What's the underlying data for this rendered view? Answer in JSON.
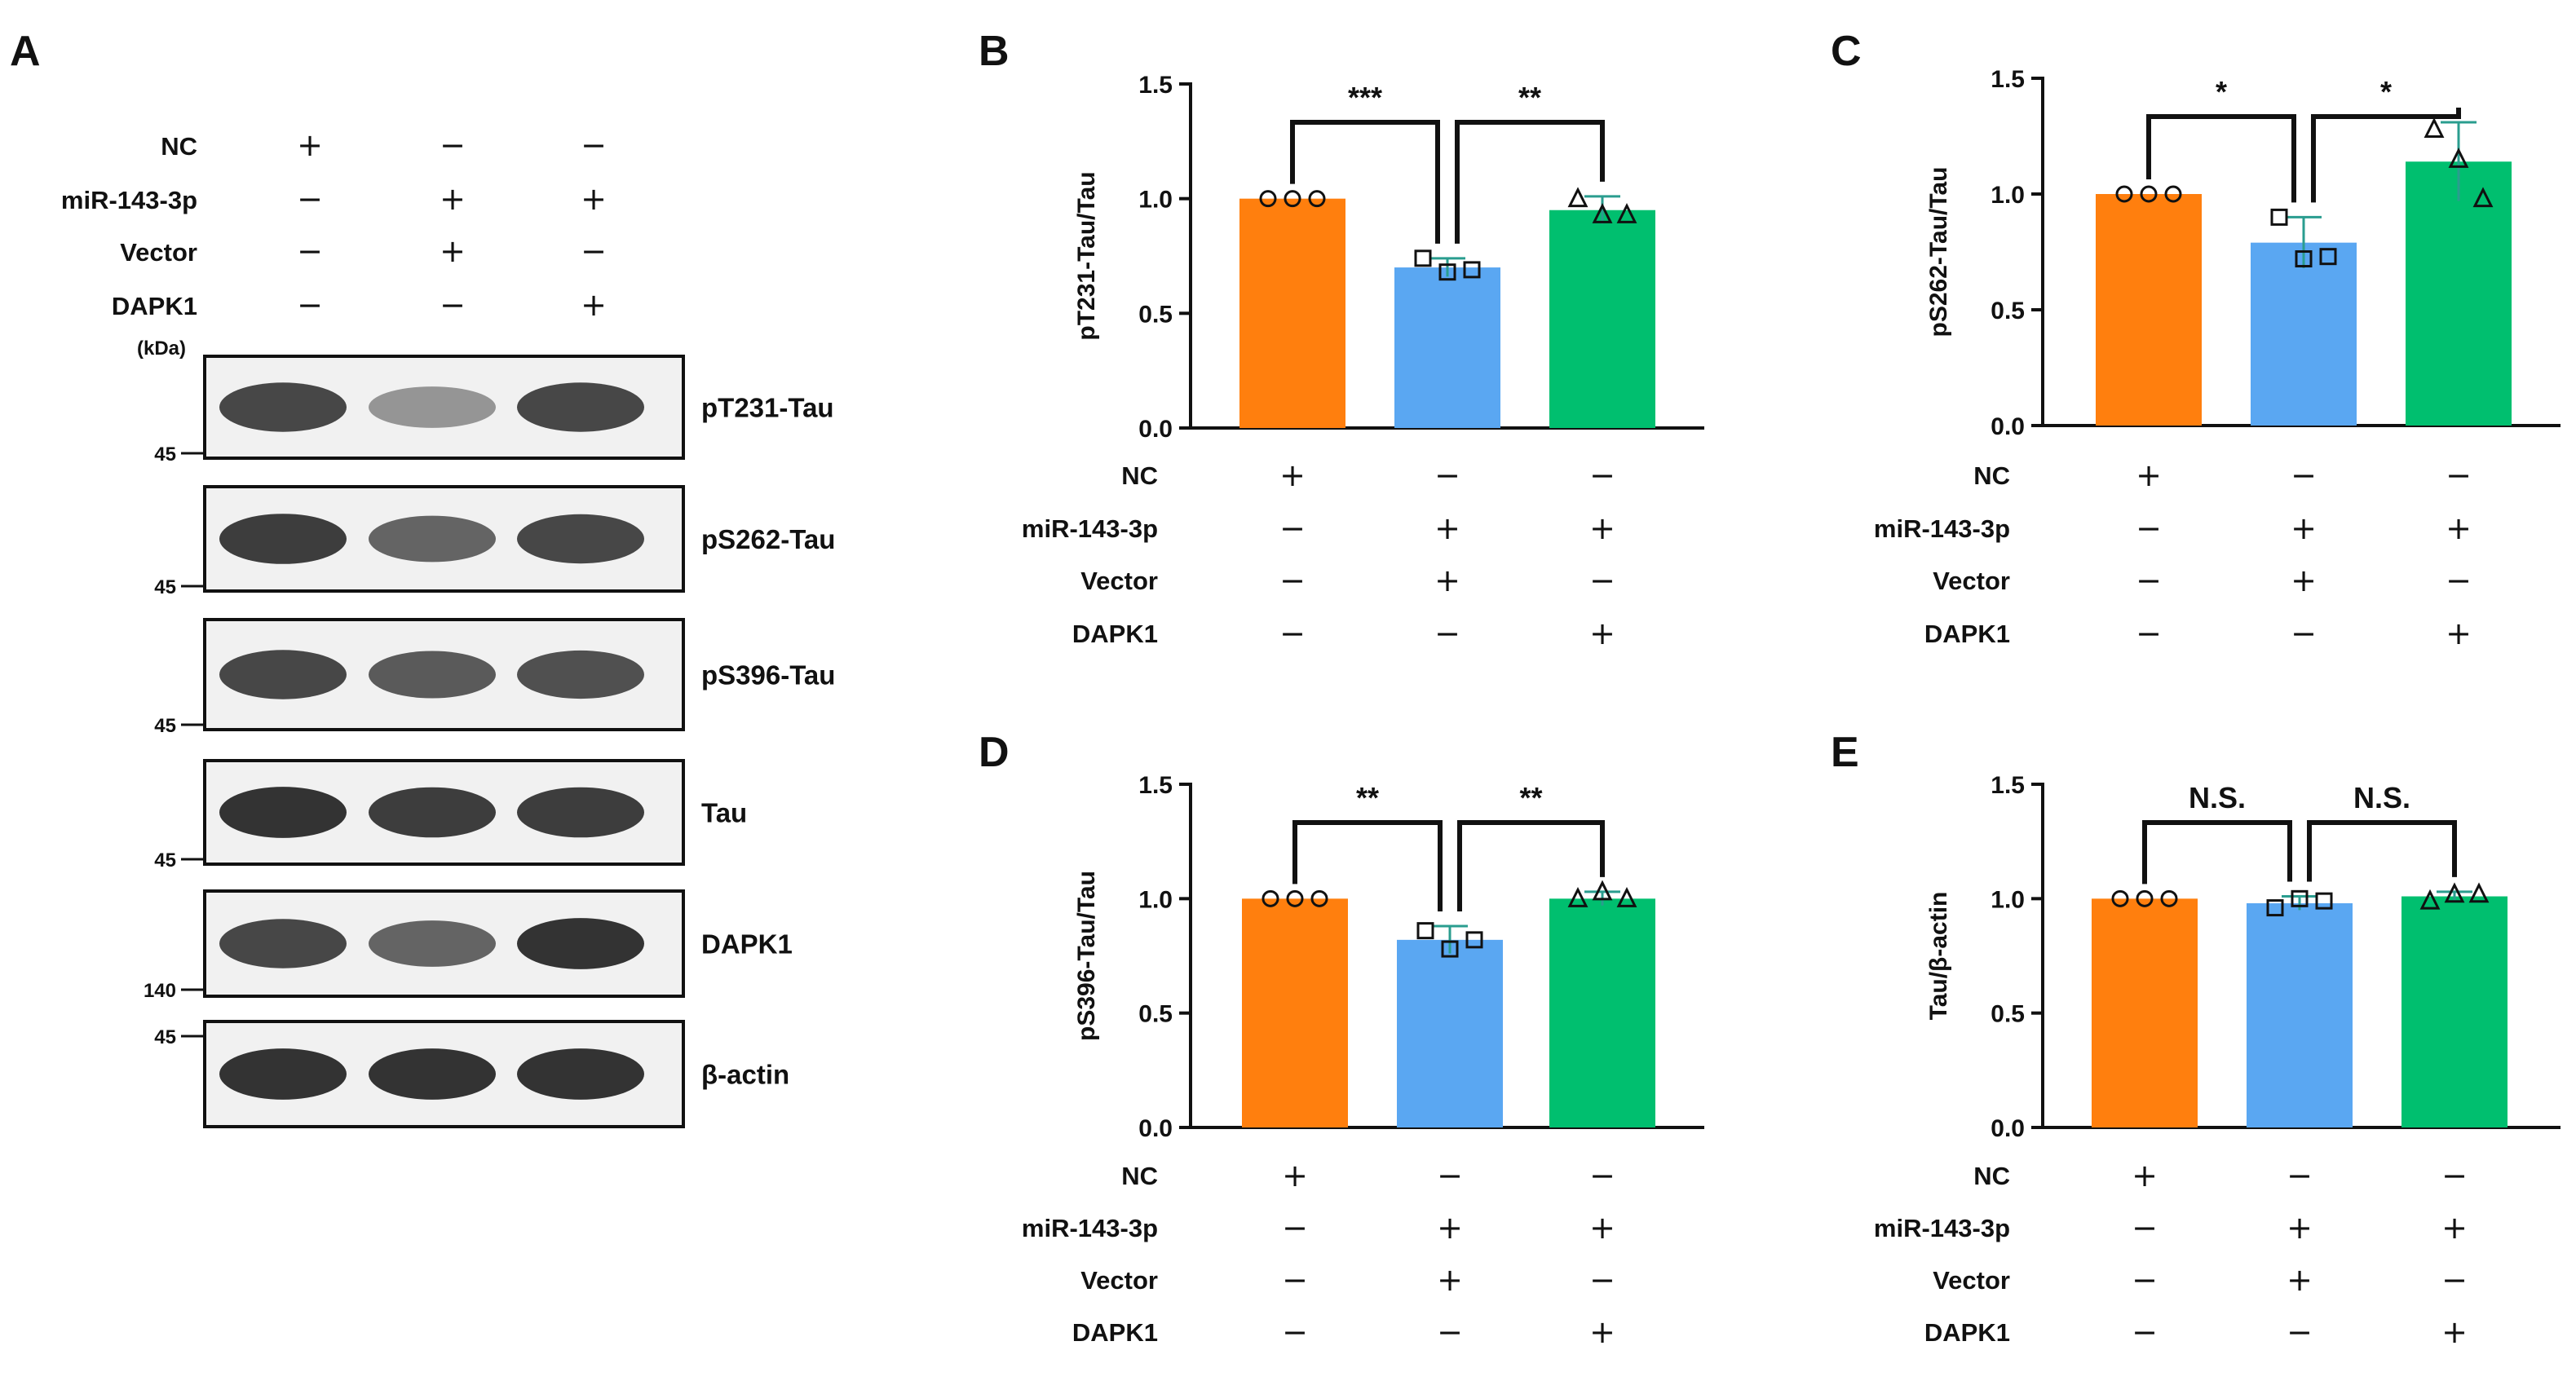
{
  "panels": {
    "a": "A",
    "b": "B",
    "c": "C",
    "d": "D",
    "e": "E"
  },
  "conditions": {
    "rows": [
      "NC",
      "miR-143-3p",
      "Vector",
      "DAPK1"
    ],
    "signs": [
      [
        "+",
        "−",
        "−"
      ],
      [
        "−",
        "+",
        "+"
      ],
      [
        "−",
        "+",
        "−"
      ],
      [
        "−",
        "−",
        "+"
      ]
    ]
  },
  "blot": {
    "unit": "(kDa)",
    "bands": [
      {
        "label": "pT231-Tau",
        "marker": "45",
        "intensity": [
          0.85,
          0.45,
          0.85
        ]
      },
      {
        "label": "pS262-Tau",
        "marker": "45",
        "intensity": [
          0.9,
          0.7,
          0.85
        ]
      },
      {
        "label": "pS396-Tau",
        "marker": "45",
        "intensity": [
          0.85,
          0.75,
          0.8
        ]
      },
      {
        "label": "Tau",
        "marker": "45",
        "intensity": [
          0.95,
          0.9,
          0.9
        ]
      },
      {
        "label": "DAPK1",
        "marker": "140",
        "intensity": [
          0.85,
          0.7,
          0.95
        ]
      },
      {
        "label": "β-actin",
        "marker": "45",
        "intensity": [
          0.95,
          0.95,
          0.95
        ]
      }
    ]
  },
  "colors": {
    "nc": "#ff7f0e",
    "mir": "#5aa7f2",
    "dapk1": "#00bf6f",
    "error": "#2a9d8f"
  },
  "chart_data": [
    {
      "panel": "B",
      "type": "bar",
      "title": "",
      "categories": [
        "NC",
        "miR-143-3p + Vector",
        "miR-143-3p + DAPK1"
      ],
      "ylabel": "pT231-Tau/Tau",
      "ylim": [
        0,
        1.5
      ],
      "yticks": [
        "0.0",
        "0.5",
        "1.0",
        "1.5"
      ],
      "values": [
        1.0,
        0.7,
        0.95
      ],
      "errors": [
        0,
        0.04,
        0.06
      ],
      "points": [
        [
          1.0,
          1.0,
          1.0
        ],
        [
          0.74,
          0.68,
          0.69
        ],
        [
          1.0,
          0.93,
          0.93
        ]
      ],
      "markers": [
        "circle",
        "square",
        "triangle"
      ],
      "comparisons": [
        {
          "from": 0,
          "to": 1,
          "label": "***"
        },
        {
          "from": 1,
          "to": 2,
          "label": "**"
        }
      ]
    },
    {
      "panel": "C",
      "type": "bar",
      "title": "",
      "categories": [
        "NC",
        "miR-143-3p + Vector",
        "miR-143-3p + DAPK1"
      ],
      "ylabel": "pS262-Tau/Tau",
      "ylim": [
        0,
        1.5
      ],
      "yticks": [
        "0.0",
        "0.5",
        "1.0",
        "1.5"
      ],
      "values": [
        1.0,
        0.79,
        1.14
      ],
      "errors": [
        0,
        0.11,
        0.17
      ],
      "points": [
        [
          1.0,
          1.0,
          1.0
        ],
        [
          0.9,
          0.72,
          0.73
        ],
        [
          1.28,
          1.15,
          0.98
        ]
      ],
      "markers": [
        "circle",
        "square",
        "triangle"
      ],
      "comparisons": [
        {
          "from": 0,
          "to": 1,
          "label": "*"
        },
        {
          "from": 1,
          "to": 2,
          "label": "*"
        }
      ]
    },
    {
      "panel": "D",
      "type": "bar",
      "title": "",
      "categories": [
        "NC",
        "miR-143-3p + Vector",
        "miR-143-3p + DAPK1"
      ],
      "ylabel": "pS396-Tau/Tau",
      "ylim": [
        0,
        1.5
      ],
      "yticks": [
        "0.0",
        "0.5",
        "1.0",
        "1.5"
      ],
      "values": [
        1.0,
        0.82,
        1.0
      ],
      "errors": [
        0,
        0.06,
        0.03
      ],
      "points": [
        [
          1.0,
          1.0,
          1.0
        ],
        [
          0.86,
          0.78,
          0.82
        ],
        [
          1.0,
          1.03,
          1.0
        ]
      ],
      "markers": [
        "circle",
        "square",
        "triangle"
      ],
      "comparisons": [
        {
          "from": 0,
          "to": 1,
          "label": "**"
        },
        {
          "from": 1,
          "to": 2,
          "label": "**"
        }
      ]
    },
    {
      "panel": "E",
      "type": "bar",
      "title": "",
      "categories": [
        "NC",
        "miR-143-3p + Vector",
        "miR-143-3p + DAPK1"
      ],
      "ylabel": "Tau/β-actin",
      "ylim": [
        0,
        1.5
      ],
      "yticks": [
        "0.0",
        "0.5",
        "1.0",
        "1.5"
      ],
      "values": [
        1.0,
        0.98,
        1.01
      ],
      "errors": [
        0,
        0.03,
        0.02
      ],
      "points": [
        [
          1.0,
          1.0,
          1.0
        ],
        [
          0.96,
          1.0,
          0.99
        ],
        [
          0.99,
          1.02,
          1.02
        ]
      ],
      "markers": [
        "circle",
        "square",
        "triangle"
      ],
      "comparisons": [
        {
          "from": 0,
          "to": 1,
          "label": "N.S."
        },
        {
          "from": 1,
          "to": 2,
          "label": "N.S."
        }
      ]
    }
  ]
}
